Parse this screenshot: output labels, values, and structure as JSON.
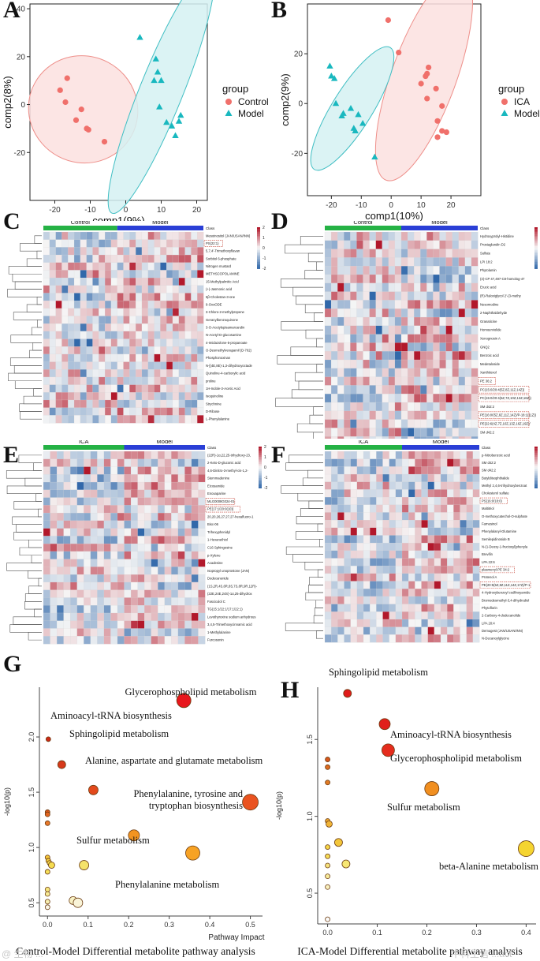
{
  "panels": {
    "A": "A",
    "B": "B",
    "C": "C",
    "D": "D",
    "E": "E",
    "F": "F",
    "G": "G",
    "H": "H"
  },
  "watermarks": {
    "left": "@ 生物 ...",
    "right": "中科生信 ...act"
  },
  "chart_data": [
    {
      "id": "A",
      "type": "scatter",
      "xlabel": "comp1(9%)",
      "ylabel": "comp2(8%)",
      "xlim": [
        -27,
        23
      ],
      "ylim": [
        -40,
        42
      ],
      "xticks": [
        -20,
        -10,
        0,
        10,
        20
      ],
      "yticks": [
        -20,
        0,
        20,
        40
      ],
      "legend": {
        "title": "group",
        "position": "right",
        "items": [
          {
            "name": "Control",
            "color": "#f0706b",
            "shape": "circle"
          },
          {
            "name": "Model",
            "color": "#19b8bf",
            "shape": "triangle"
          }
        ]
      },
      "series": [
        {
          "name": "Control",
          "shape": "circle",
          "color": "#f0706b",
          "points": [
            [
              -16.5,
              11
            ],
            [
              -18.5,
              6
            ],
            [
              -17,
              1
            ],
            [
              -12.5,
              -2
            ],
            [
              -14,
              -6.5
            ],
            [
              -11,
              -10
            ],
            [
              -10.5,
              -10.5
            ],
            [
              -6,
              -15.5
            ]
          ]
        },
        {
          "name": "Model",
          "shape": "triangle",
          "color": "#19b8bf",
          "points": [
            [
              4,
              28
            ],
            [
              8.5,
              19
            ],
            [
              8,
              10
            ],
            [
              9,
              13.5
            ],
            [
              10,
              10
            ],
            [
              9.5,
              -1
            ],
            [
              15.5,
              -4.5
            ],
            [
              11.5,
              -7.5
            ],
            [
              15,
              -7
            ],
            [
              13,
              -9
            ],
            [
              14,
              -13
            ]
          ]
        }
      ],
      "ellipses": [
        {
          "group": "Control",
          "cx": -12,
          "cy": -2,
          "rx": 15,
          "ry": 23,
          "angle": -62,
          "fill": "#fbe1df",
          "stroke": "#ee8f8a"
        },
        {
          "group": "Model",
          "cx": 10,
          "cy": 5.5,
          "rx": 37,
          "ry": 9,
          "angle": -68,
          "fill": "#d5f1f2",
          "stroke": "#3fbec3"
        }
      ]
    },
    {
      "id": "B",
      "type": "scatter",
      "xlabel": "comp1(10%)",
      "ylabel": "comp2(9%)",
      "xlim": [
        -28,
        30
      ],
      "ylim": [
        -37,
        40
      ],
      "xticks": [
        -20,
        -10,
        0,
        10,
        20
      ],
      "yticks": [
        -20,
        0,
        20
      ],
      "legend": {
        "title": "group",
        "position": "right",
        "items": [
          {
            "name": "ICA",
            "color": "#f0706b",
            "shape": "circle"
          },
          {
            "name": "Model",
            "color": "#19b8bf",
            "shape": "triangle"
          }
        ]
      },
      "series": [
        {
          "name": "ICA",
          "shape": "circle",
          "color": "#f0706b",
          "points": [
            [
              -1,
              33.5
            ],
            [
              2.5,
              20.5
            ],
            [
              12.5,
              14.5
            ],
            [
              11.5,
              11
            ],
            [
              12,
              12
            ],
            [
              10,
              8
            ],
            [
              15,
              6
            ],
            [
              12,
              2
            ],
            [
              17,
              -1
            ],
            [
              15.5,
              -7
            ],
            [
              17,
              -11
            ],
            [
              18.5,
              -11.5
            ],
            [
              15.5,
              -13.5
            ]
          ]
        },
        {
          "name": "Model",
          "shape": "triangle",
          "color": "#19b8bf",
          "points": [
            [
              -20.5,
              15
            ],
            [
              -19,
              10
            ],
            [
              -20,
              11
            ],
            [
              -18.5,
              0
            ],
            [
              -13.5,
              -2
            ],
            [
              -16.5,
              -5
            ],
            [
              -16,
              -4
            ],
            [
              -11,
              -4.5
            ],
            [
              -9.5,
              -8
            ],
            [
              -12.5,
              -10
            ],
            [
              -12,
              -11
            ],
            [
              -5.5,
              -21.5
            ]
          ]
        }
      ],
      "ellipses": [
        {
          "group": "ICA",
          "cx": 11,
          "cy": 11,
          "rx": 37,
          "ry": 13,
          "angle": -70,
          "fill": "#fbe1df",
          "stroke": "#ee8f8a"
        },
        {
          "group": "Model",
          "cx": -13,
          "cy": -2,
          "rx": 24,
          "ry": 8,
          "angle": -58,
          "fill": "#d5f1f2",
          "stroke": "#3fbec3"
        }
      ]
    },
    {
      "id": "C",
      "type": "heatmap",
      "groups": [
        {
          "name": "Control",
          "color": "#25b245",
          "cols": 12
        },
        {
          "name": "Model",
          "color": "#2a3fd6",
          "cols": 14
        }
      ],
      "class_label": "Class",
      "scale": [
        "2",
        "1",
        "0",
        "-1",
        "-2"
      ],
      "rows": [
        "Mesoinositol (JAN/USAN/INN)",
        "PS(22:1)",
        "5,7,4'-Trimethoxyflavan",
        "Sorbitol 6-phosphate",
        "Nitrogen mustard",
        "METHSCOPOLAMINE",
        "15-Methylpalmitic Acid",
        "(+)-Jasmonic acid",
        "5β-Cholestan-3-one",
        "9-OxoODE",
        "3-Chloro-2-methylpropene",
        "Geranylbenzoquinone",
        "3-O-Acetylepisamarcandin",
        "N-Acetyl-D-glucosamine",
        "4-Imidazolone-5-propanoate",
        "O-Desmethylverapamil (D-702)",
        "Phosphonoxinan",
        "N-[(4E,8E)-1,3-dihydroxyoctade",
        "Quinoline-4-carboxylic acid",
        "proline",
        "1H-Indole-3-Acetic Acid",
        "Isoquinoline",
        "Strychnine",
        "D-Ribose",
        "L-Phenylalanine"
      ],
      "highlight_rows": [
        "PS(22:1)"
      ]
    },
    {
      "id": "D",
      "type": "heatmap",
      "groups": [
        {
          "name": "Control",
          "color": "#25b245",
          "cols": 12
        },
        {
          "name": "Model",
          "color": "#2a3fd6",
          "cols": 12
        }
      ],
      "class_label": "Class",
      "scale": [
        "3",
        "2",
        "1",
        "0",
        "-1",
        "-2",
        "-3"
      ],
      "rows": [
        "Hydroxyprolyl-Histidine",
        "Prostaglandin D2",
        "Sulfate",
        "LPI 18:2",
        "Phytolamin",
        "(4)-CP 47,497-C8-homolog-47",
        "Erucic acid",
        "(R)-Raloxiglycol 2'-(3-methy",
        "Nesomodine",
        "2-Naphthaldehyde",
        "Granaticine",
        "Homoerviolide",
        "Xenognosin A",
        "GNQ2",
        "Benzoic acid",
        "Medetaloside",
        "Xanthitoxol",
        "PE 36:2",
        "PC(15:0/20:4(5Z,8Z,11Z,14Z))",
        "PC(15:0/20:4(5Z,7Z,10Z,13Z,16Z))",
        "SM d42:2",
        "PE(16:0/(5Z,8Z,11Z,14Z)/P-18:1(11Z))",
        "PE(22:6(4Z,7Z,10Z,13Z,16Z,19Z)/",
        "SM d42:2",
        "SM d42:2"
      ],
      "highlight_rows": [
        "PE 36:2",
        "PC(15:0/20:4(5Z,8Z,11Z,14Z))",
        "PC(15:0/20:4(5Z,7Z,10Z,13Z,16Z))",
        "PE(16:0/(5Z,8Z,11Z,14Z)/P-18:1(11Z))",
        "PE(22:6(4Z,7Z,10Z,13Z,16Z,19Z)/"
      ]
    },
    {
      "id": "E",
      "type": "heatmap",
      "groups": [
        {
          "name": "ICA",
          "color": "#25b245",
          "cols": 12
        },
        {
          "name": "Model",
          "color": "#2a3fd6",
          "cols": 12
        }
      ],
      "class_label": "Class",
      "scale": [
        "2",
        "1",
        "0",
        "-1",
        "-2"
      ],
      "rows": [
        "(22R)-1α,22,25-trihydroxy-23,",
        "2-Keto-D-gluconic acid",
        "4,6-Dinitro-3-methyl-cis-1,2-",
        "Stemmadenine",
        "Eicosamide",
        "Enoxaparine",
        "MLG0008G024-01",
        "PE(17:1/20:0(10))",
        "20,20,26,27,27,27-hexafluoro-1",
        "Bisc-06",
        "Trihexyphenidyl",
        "1-Hexanethiol",
        "C16 Sphingosine",
        "p-Xylene",
        "Acadesine",
        "Isopropyl unoprostone (JAN)",
        "Dodecanenide",
        "(1S,2R,4S,6R,8S,7S,8R,9R,12R)-",
        "(22E,24E,24S)-1α,25-dihydrox",
        "Fasciculol C",
        "TG(15:1/22:1/17:1/22:1)",
        "Levothyroxine sodium anhydrous",
        "3,4,5-Trimethoxycinnamic acid",
        "1-Methylalanine",
        "Furcosonin"
      ],
      "highlight_rows": [
        "MLG0008G024-01",
        "PE(17:1/20:0(10))"
      ]
    },
    {
      "id": "F",
      "type": "heatmap",
      "groups": [
        {
          "name": "ICA",
          "color": "#25b245",
          "cols": 12
        },
        {
          "name": "Model",
          "color": "#2a3fd6",
          "cols": 12
        }
      ],
      "class_label": "Class",
      "scale": [
        "3",
        "2",
        "1",
        "0",
        "-1",
        "-2",
        "-3"
      ],
      "rows": [
        "p-Nitrobenzoic acid",
        "SM d42:2",
        "SM d42:2",
        "Butyldiisophthalide",
        "Methyl 2,4,6-trihydroxybenzoat",
        "Cholesterol sulfate",
        "PS(16:0/18:0)",
        "Maltitriol",
        "O-methoxycatechol-O-sulphate",
        "Farnesinol",
        "Phenylalanyl-Glutamine",
        "Semilepidinoside B",
        "N-(1-Deoxy-1-fructosyl)phenyla",
        "Brevifin",
        "LPA 22:6",
        "plasmenyl-PE 34:2",
        "Protenol A",
        "PE(20:5(5Z,8Z,11Z,14Z,17Z)/P-1",
        "4-Hydroxybenzoyl codfinoyamide",
        "Bromodesmethyl-3,4-dihydrodiol",
        "Phytoflorin",
        "2-Carboxy-4-dodecanolide",
        "LPA 20:4",
        "Demugest (JAN/USAN/INN)",
        "N-Decanoylglycine"
      ],
      "highlight_rows": [
        "PS(16:0/18:0)",
        "plasmenyl-PE 34:2",
        "PE(20:5(5Z,8Z,11Z,14Z,17Z)/P-1"
      ]
    },
    {
      "id": "G",
      "type": "scatter",
      "title": "Control-Model Differential metabolite pathway analysis",
      "xlabel": "Pathway Impact",
      "ylabel": "-log10(p)",
      "xlim": [
        -0.02,
        0.53
      ],
      "ylim": [
        0.38,
        2.45
      ],
      "xticks": [
        0.0,
        0.1,
        0.2,
        0.3,
        0.4,
        0.5
      ],
      "yticks": [
        0.5,
        1.0,
        1.5,
        2.0
      ],
      "points": [
        {
          "x": 0.336,
          "y": 2.33,
          "r": 9,
          "color": "#e8161c",
          "label": "Glycerophospholipid metabolism"
        },
        {
          "x": 0.002,
          "y": 1.98,
          "r": 3,
          "color": "#cc2a17",
          "label": "Aminoacyl-tRNA biosynthesis"
        },
        {
          "x": 0.035,
          "y": 1.75,
          "r": 5,
          "color": "#d7391a",
          "label": "Sphingolipid metabolism"
        },
        {
          "x": 0.113,
          "y": 1.52,
          "r": 6,
          "color": "#e3491c",
          "label": "Alanine, aspartate and glutamate metabolism"
        },
        {
          "x": 0.5,
          "y": 1.41,
          "r": 10,
          "color": "#ea5320",
          "label": "Phenylalanine, tyrosine and tryptophan biosynthesis"
        },
        {
          "x": 0.213,
          "y": 1.11,
          "r": 7,
          "color": "#f29421",
          "label": "Sulfur metabolism"
        },
        {
          "x": 0.358,
          "y": 0.95,
          "r": 9,
          "color": "#f7a224",
          "label": "Phenylalanine metabolism"
        },
        {
          "x": 0.0,
          "y": 1.32,
          "r": 3,
          "color": "#d9581c",
          "label": ""
        },
        {
          "x": 0.0,
          "y": 1.3,
          "r": 3,
          "color": "#e2641f",
          "label": ""
        },
        {
          "x": 0.0,
          "y": 1.22,
          "r": 3,
          "color": "#e8782a",
          "label": ""
        },
        {
          "x": 0.0,
          "y": 0.91,
          "r": 3,
          "color": "#f4c63a",
          "label": ""
        },
        {
          "x": 0.002,
          "y": 0.88,
          "r": 3,
          "color": "#f5d042",
          "label": ""
        },
        {
          "x": 0.005,
          "y": 0.86,
          "r": 3,
          "color": "#f5d84a",
          "label": ""
        },
        {
          "x": 0.01,
          "y": 0.84,
          "r": 4,
          "color": "#f5dc50",
          "label": ""
        },
        {
          "x": 0.0,
          "y": 0.78,
          "r": 3,
          "color": "#f6e05a",
          "label": ""
        },
        {
          "x": 0.09,
          "y": 0.84,
          "r": 6,
          "color": "#f5e26a",
          "label": ""
        },
        {
          "x": 0.0,
          "y": 0.62,
          "r": 3,
          "color": "#f6e67e",
          "label": ""
        },
        {
          "x": 0.0,
          "y": 0.58,
          "r": 3,
          "color": "#f7eb96",
          "label": ""
        },
        {
          "x": 0.0,
          "y": 0.51,
          "r": 3,
          "color": "#f7eeb0",
          "label": ""
        },
        {
          "x": 0.063,
          "y": 0.52,
          "r": 5,
          "color": "#f8f1c4",
          "label": ""
        },
        {
          "x": 0.075,
          "y": 0.5,
          "r": 6,
          "color": "#f9f4d8",
          "label": ""
        },
        {
          "x": 0.0,
          "y": 0.46,
          "r": 3,
          "color": "#f9f6e8",
          "label": ""
        }
      ]
    },
    {
      "id": "H",
      "type": "scatter",
      "title": "ICA-Model Differential metabolite pathway analysis",
      "xlabel": "",
      "ylabel": "-log10(p)",
      "xlim": [
        -0.02,
        0.42
      ],
      "ylim": [
        0.3,
        1.84
      ],
      "xticks": [
        0.0,
        0.1,
        0.2,
        0.3,
        0.4
      ],
      "yticks": [
        0.5,
        1.0,
        1.5
      ],
      "points": [
        {
          "x": 0.04,
          "y": 1.8,
          "r": 5,
          "color": "#e01b1a",
          "label": "Sphingolipid metabolism"
        },
        {
          "x": 0.115,
          "y": 1.6,
          "r": 7,
          "color": "#e0201a",
          "label": "Aminoacyl-tRNA biosynthesis"
        },
        {
          "x": 0.122,
          "y": 1.43,
          "r": 8,
          "color": "#e52c1d",
          "label": "Glycerophospholipid metabolism"
        },
        {
          "x": 0.21,
          "y": 1.18,
          "r": 9,
          "color": "#f18f20",
          "label": "Sulfur metabolism"
        },
        {
          "x": 0.4,
          "y": 0.79,
          "r": 10,
          "color": "#f5d430",
          "label": "beta-Alanine metabolism"
        },
        {
          "x": 0.0,
          "y": 1.37,
          "r": 3,
          "color": "#d7571c",
          "label": ""
        },
        {
          "x": 0.0,
          "y": 1.32,
          "r": 3,
          "color": "#dd6b20",
          "label": ""
        },
        {
          "x": 0.0,
          "y": 1.22,
          "r": 3,
          "color": "#e07a24",
          "label": ""
        },
        {
          "x": 0.0,
          "y": 0.97,
          "r": 3,
          "color": "#eca630",
          "label": ""
        },
        {
          "x": 0.003,
          "y": 0.95,
          "r": 4,
          "color": "#f0b437",
          "label": ""
        },
        {
          "x": 0.022,
          "y": 0.83,
          "r": 5,
          "color": "#f3c63a",
          "label": ""
        },
        {
          "x": 0.0,
          "y": 0.8,
          "r": 3,
          "color": "#f5d547",
          "label": ""
        },
        {
          "x": 0.0,
          "y": 0.74,
          "r": 3,
          "color": "#f6dd58",
          "label": ""
        },
        {
          "x": 0.037,
          "y": 0.69,
          "r": 5,
          "color": "#f7e774",
          "label": ""
        },
        {
          "x": 0.0,
          "y": 0.68,
          "r": 3,
          "color": "#f6e37c",
          "label": ""
        },
        {
          "x": 0.0,
          "y": 0.61,
          "r": 3,
          "color": "#f7eb9a",
          "label": ""
        },
        {
          "x": 0.0,
          "y": 0.54,
          "r": 3,
          "color": "#f8f0be",
          "label": ""
        },
        {
          "x": 0.0,
          "y": 0.33,
          "r": 3,
          "color": "#fafafa",
          "label": ""
        }
      ]
    }
  ]
}
